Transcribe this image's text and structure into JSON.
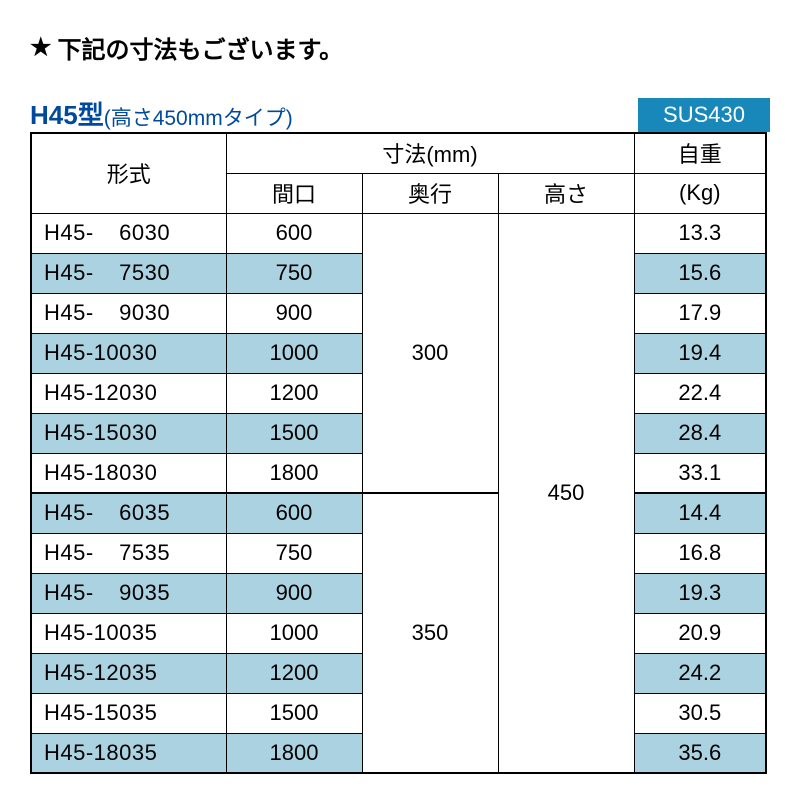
{
  "colors": {
    "header_text": "#004a9e",
    "badge_bg": "#1788b9",
    "badge_text": "#ffffff",
    "shaded_row": "#abd2e0",
    "border": "#000000",
    "background": "#ffffff"
  },
  "top_note": "下記の寸法もございます。",
  "model_title": "H45型",
  "model_sub": "(高さ450mmタイプ)",
  "material_badge": "SUS430",
  "headers": {
    "model": "形式",
    "dimensions": "寸法(mm)",
    "width": "間口",
    "depth": "奥行",
    "height": "高さ",
    "weight_top": "自重",
    "weight_bottom": "(Kg)"
  },
  "merged": {
    "depth1": "300",
    "depth2": "350",
    "height": "450"
  },
  "rows": [
    {
      "model": "H45-  6030",
      "width": "600",
      "weight": "13.3",
      "shaded": false
    },
    {
      "model": "H45-  7530",
      "width": "750",
      "weight": "15.6",
      "shaded": true
    },
    {
      "model": "H45-  9030",
      "width": "900",
      "weight": "17.9",
      "shaded": false
    },
    {
      "model": "H45-10030",
      "width": "1000",
      "weight": "19.4",
      "shaded": true
    },
    {
      "model": "H45-12030",
      "width": "1200",
      "weight": "22.4",
      "shaded": false
    },
    {
      "model": "H45-15030",
      "width": "1500",
      "weight": "28.4",
      "shaded": true
    },
    {
      "model": "H45-18030",
      "width": "1800",
      "weight": "33.1",
      "shaded": false
    },
    {
      "model": "H45-  6035",
      "width": "600",
      "weight": "14.4",
      "shaded": true
    },
    {
      "model": "H45-  7535",
      "width": "750",
      "weight": "16.8",
      "shaded": false
    },
    {
      "model": "H45-  9035",
      "width": "900",
      "weight": "19.3",
      "shaded": true
    },
    {
      "model": "H45-10035",
      "width": "1000",
      "weight": "20.9",
      "shaded": false
    },
    {
      "model": "H45-12035",
      "width": "1200",
      "weight": "24.2",
      "shaded": true
    },
    {
      "model": "H45-15035",
      "width": "1500",
      "weight": "30.5",
      "shaded": false
    },
    {
      "model": "H45-18035",
      "width": "1800",
      "weight": "35.6",
      "shaded": true
    }
  ]
}
